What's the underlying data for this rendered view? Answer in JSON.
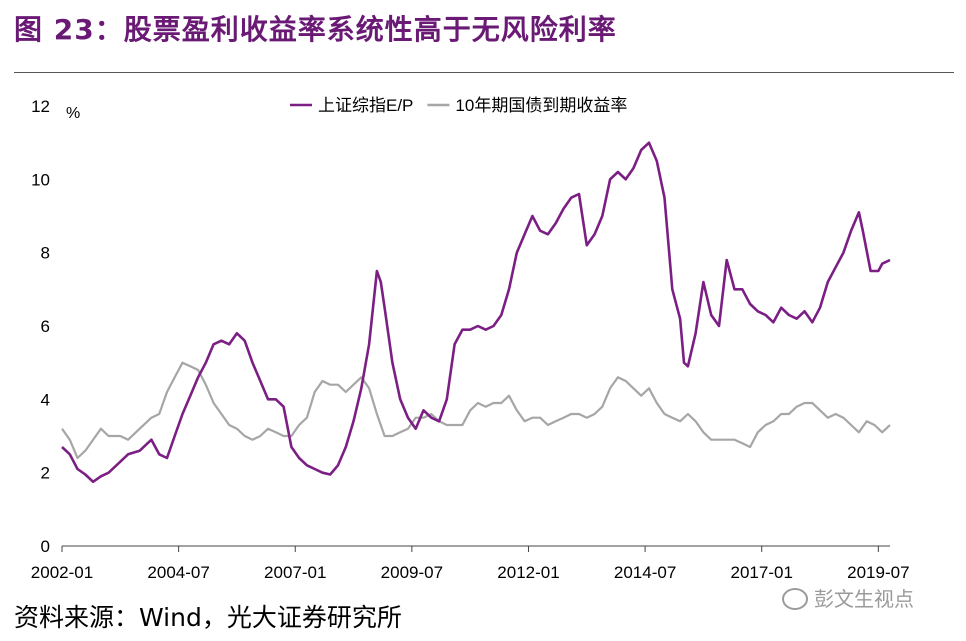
{
  "figure_title": "图 23：股票盈利收益率系统性高于无风险利率",
  "source_text": "资料来源：Wind，光大证券研究所",
  "watermark_text": "彭文生视点",
  "colors": {
    "title": "#6a1a75",
    "series_ep": "#7b1f84",
    "series_bond": "#a6a6a6"
  },
  "chart_data": {
    "type": "line",
    "ylabel": "%",
    "ylim": [
      0,
      12
    ],
    "yticks": [
      0,
      2,
      4,
      6,
      8,
      10,
      12
    ],
    "xlim": [
      "2002-01",
      "2019-10"
    ],
    "xticks": [
      "2002-01",
      "2004-07",
      "2007-01",
      "2009-07",
      "2012-01",
      "2014-07",
      "2017-01",
      "2019-07"
    ],
    "grid": false,
    "legend_position": "top-center",
    "series": [
      {
        "name": "上证综指E/P",
        "points": [
          [
            "2002-01",
            2.7
          ],
          [
            "2002-03",
            2.5
          ],
          [
            "2002-05",
            2.1
          ],
          [
            "2002-07",
            1.95
          ],
          [
            "2002-09",
            1.75
          ],
          [
            "2002-11",
            1.9
          ],
          [
            "2003-01",
            2.0
          ],
          [
            "2003-04",
            2.3
          ],
          [
            "2003-06",
            2.5
          ],
          [
            "2003-09",
            2.6
          ],
          [
            "2003-12",
            2.9
          ],
          [
            "2004-02",
            2.5
          ],
          [
            "2004-04",
            2.4
          ],
          [
            "2004-06",
            3.0
          ],
          [
            "2004-08",
            3.6
          ],
          [
            "2004-10",
            4.1
          ],
          [
            "2004-12",
            4.6
          ],
          [
            "2005-02",
            5.0
          ],
          [
            "2005-04",
            5.5
          ],
          [
            "2005-06",
            5.6
          ],
          [
            "2005-08",
            5.5
          ],
          [
            "2005-10",
            5.8
          ],
          [
            "2005-12",
            5.6
          ],
          [
            "2006-02",
            5.0
          ],
          [
            "2006-04",
            4.5
          ],
          [
            "2006-06",
            4.0
          ],
          [
            "2006-08",
            4.0
          ],
          [
            "2006-10",
            3.8
          ],
          [
            "2006-12",
            2.7
          ],
          [
            "2007-02",
            2.4
          ],
          [
            "2007-04",
            2.2
          ],
          [
            "2007-06",
            2.1
          ],
          [
            "2007-08",
            2.0
          ],
          [
            "2007-10",
            1.95
          ],
          [
            "2007-12",
            2.2
          ],
          [
            "2008-02",
            2.7
          ],
          [
            "2008-04",
            3.4
          ],
          [
            "2008-06",
            4.3
          ],
          [
            "2008-08",
            5.5
          ],
          [
            "2008-10",
            7.5
          ],
          [
            "2008-11",
            7.2
          ],
          [
            "2008-12",
            6.5
          ],
          [
            "2009-02",
            5.0
          ],
          [
            "2009-04",
            4.0
          ],
          [
            "2009-06",
            3.5
          ],
          [
            "2009-08",
            3.2
          ],
          [
            "2009-10",
            3.7
          ],
          [
            "2009-12",
            3.5
          ],
          [
            "2010-02",
            3.4
          ],
          [
            "2010-04",
            4.0
          ],
          [
            "2010-06",
            5.5
          ],
          [
            "2010-08",
            5.9
          ],
          [
            "2010-10",
            5.9
          ],
          [
            "2010-12",
            6.0
          ],
          [
            "2011-02",
            5.9
          ],
          [
            "2011-04",
            6.0
          ],
          [
            "2011-06",
            6.3
          ],
          [
            "2011-08",
            7.0
          ],
          [
            "2011-10",
            8.0
          ],
          [
            "2011-12",
            8.5
          ],
          [
            "2012-02",
            9.0
          ],
          [
            "2012-04",
            8.6
          ],
          [
            "2012-06",
            8.5
          ],
          [
            "2012-08",
            8.8
          ],
          [
            "2012-10",
            9.2
          ],
          [
            "2012-12",
            9.5
          ],
          [
            "2013-02",
            9.6
          ],
          [
            "2013-04",
            8.2
          ],
          [
            "2013-06",
            8.5
          ],
          [
            "2013-08",
            9.0
          ],
          [
            "2013-10",
            10.0
          ],
          [
            "2013-12",
            10.2
          ],
          [
            "2014-02",
            10.0
          ],
          [
            "2014-04",
            10.3
          ],
          [
            "2014-06",
            10.8
          ],
          [
            "2014-08",
            11.0
          ],
          [
            "2014-10",
            10.5
          ],
          [
            "2014-12",
            9.5
          ],
          [
            "2015-02",
            7.0
          ],
          [
            "2015-04",
            6.2
          ],
          [
            "2015-05",
            5.0
          ],
          [
            "2015-06",
            4.9
          ],
          [
            "2015-08",
            5.8
          ],
          [
            "2015-10",
            7.2
          ],
          [
            "2015-12",
            6.3
          ],
          [
            "2016-02",
            6.0
          ],
          [
            "2016-04",
            7.8
          ],
          [
            "2016-06",
            7.0
          ],
          [
            "2016-08",
            7.0
          ],
          [
            "2016-10",
            6.6
          ],
          [
            "2016-12",
            6.4
          ],
          [
            "2017-02",
            6.3
          ],
          [
            "2017-04",
            6.1
          ],
          [
            "2017-06",
            6.5
          ],
          [
            "2017-08",
            6.3
          ],
          [
            "2017-10",
            6.2
          ],
          [
            "2017-12",
            6.4
          ],
          [
            "2018-02",
            6.1
          ],
          [
            "2018-04",
            6.5
          ],
          [
            "2018-06",
            7.2
          ],
          [
            "2018-08",
            7.6
          ],
          [
            "2018-10",
            8.0
          ],
          [
            "2018-12",
            8.6
          ],
          [
            "2019-02",
            9.1
          ],
          [
            "2019-03",
            8.6
          ],
          [
            "2019-05",
            7.5
          ],
          [
            "2019-07",
            7.5
          ],
          [
            "2019-08",
            7.7
          ],
          [
            "2019-10",
            7.8
          ]
        ]
      },
      {
        "name": "10年期国债到期收益率",
        "points": [
          [
            "2002-01",
            3.2
          ],
          [
            "2002-03",
            2.9
          ],
          [
            "2002-05",
            2.4
          ],
          [
            "2002-07",
            2.6
          ],
          [
            "2002-09",
            2.9
          ],
          [
            "2002-11",
            3.2
          ],
          [
            "2003-01",
            3.0
          ],
          [
            "2003-04",
            3.0
          ],
          [
            "2003-06",
            2.9
          ],
          [
            "2003-09",
            3.2
          ],
          [
            "2003-12",
            3.5
          ],
          [
            "2004-02",
            3.6
          ],
          [
            "2004-04",
            4.2
          ],
          [
            "2004-06",
            4.6
          ],
          [
            "2004-08",
            5.0
          ],
          [
            "2004-10",
            4.9
          ],
          [
            "2004-12",
            4.8
          ],
          [
            "2005-02",
            4.4
          ],
          [
            "2005-04",
            3.9
          ],
          [
            "2005-06",
            3.6
          ],
          [
            "2005-08",
            3.3
          ],
          [
            "2005-10",
            3.2
          ],
          [
            "2005-12",
            3.0
          ],
          [
            "2006-02",
            2.9
          ],
          [
            "2006-04",
            3.0
          ],
          [
            "2006-06",
            3.2
          ],
          [
            "2006-08",
            3.1
          ],
          [
            "2006-10",
            3.0
          ],
          [
            "2006-12",
            3.0
          ],
          [
            "2007-02",
            3.3
          ],
          [
            "2007-04",
            3.5
          ],
          [
            "2007-06",
            4.2
          ],
          [
            "2007-08",
            4.5
          ],
          [
            "2007-10",
            4.4
          ],
          [
            "2007-12",
            4.4
          ],
          [
            "2008-02",
            4.2
          ],
          [
            "2008-04",
            4.4
          ],
          [
            "2008-06",
            4.6
          ],
          [
            "2008-08",
            4.3
          ],
          [
            "2008-10",
            3.6
          ],
          [
            "2008-12",
            3.0
          ],
          [
            "2009-02",
            3.0
          ],
          [
            "2009-04",
            3.1
          ],
          [
            "2009-06",
            3.2
          ],
          [
            "2009-08",
            3.5
          ],
          [
            "2009-10",
            3.5
          ],
          [
            "2009-12",
            3.6
          ],
          [
            "2010-02",
            3.4
          ],
          [
            "2010-04",
            3.3
          ],
          [
            "2010-06",
            3.3
          ],
          [
            "2010-08",
            3.3
          ],
          [
            "2010-10",
            3.7
          ],
          [
            "2010-12",
            3.9
          ],
          [
            "2011-02",
            3.8
          ],
          [
            "2011-04",
            3.9
          ],
          [
            "2011-06",
            3.9
          ],
          [
            "2011-08",
            4.1
          ],
          [
            "2011-10",
            3.7
          ],
          [
            "2011-12",
            3.4
          ],
          [
            "2012-02",
            3.5
          ],
          [
            "2012-04",
            3.5
          ],
          [
            "2012-06",
            3.3
          ],
          [
            "2012-08",
            3.4
          ],
          [
            "2012-10",
            3.5
          ],
          [
            "2012-12",
            3.6
          ],
          [
            "2013-02",
            3.6
          ],
          [
            "2013-04",
            3.5
          ],
          [
            "2013-06",
            3.6
          ],
          [
            "2013-08",
            3.8
          ],
          [
            "2013-10",
            4.3
          ],
          [
            "2013-12",
            4.6
          ],
          [
            "2014-02",
            4.5
          ],
          [
            "2014-04",
            4.3
          ],
          [
            "2014-06",
            4.1
          ],
          [
            "2014-08",
            4.3
          ],
          [
            "2014-10",
            3.9
          ],
          [
            "2014-12",
            3.6
          ],
          [
            "2015-02",
            3.5
          ],
          [
            "2015-04",
            3.4
          ],
          [
            "2015-06",
            3.6
          ],
          [
            "2015-08",
            3.4
          ],
          [
            "2015-10",
            3.1
          ],
          [
            "2015-12",
            2.9
          ],
          [
            "2016-02",
            2.9
          ],
          [
            "2016-04",
            2.9
          ],
          [
            "2016-06",
            2.9
          ],
          [
            "2016-08",
            2.8
          ],
          [
            "2016-10",
            2.7
          ],
          [
            "2016-12",
            3.1
          ],
          [
            "2017-02",
            3.3
          ],
          [
            "2017-04",
            3.4
          ],
          [
            "2017-06",
            3.6
          ],
          [
            "2017-08",
            3.6
          ],
          [
            "2017-10",
            3.8
          ],
          [
            "2017-12",
            3.9
          ],
          [
            "2018-02",
            3.9
          ],
          [
            "2018-04",
            3.7
          ],
          [
            "2018-06",
            3.5
          ],
          [
            "2018-08",
            3.6
          ],
          [
            "2018-10",
            3.5
          ],
          [
            "2018-12",
            3.3
          ],
          [
            "2019-02",
            3.1
          ],
          [
            "2019-04",
            3.4
          ],
          [
            "2019-06",
            3.3
          ],
          [
            "2019-08",
            3.1
          ],
          [
            "2019-10",
            3.3
          ]
        ]
      }
    ]
  }
}
